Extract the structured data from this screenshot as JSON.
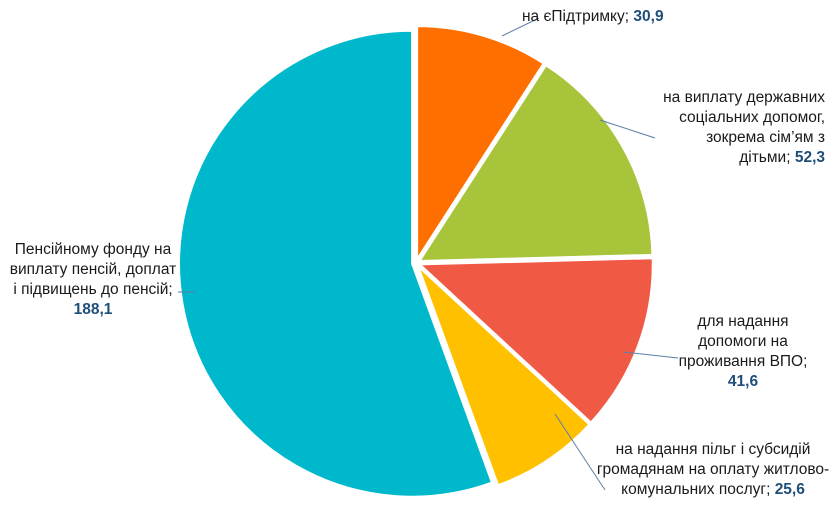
{
  "chart_data": {
    "type": "pie",
    "legend": "none",
    "slices": [
      {
        "label": "на єПідтримку;",
        "value": 30.9,
        "value_text": "30,9",
        "color": "#FF6F00"
      },
      {
        "label": "на виплату державних соціальних допомог, зокрема сім’ям з дітьми;",
        "value": 52.3,
        "value_text": "52,3",
        "color": "#A8C43A"
      },
      {
        "label": "для надання допомоги на проживання ВПО;",
        "value": 41.6,
        "value_text": "41,6",
        "color": "#F05A45"
      },
      {
        "label": "на надання пільг і субсидій громадянам на оплату житлово-комунальних послуг;",
        "value": 25.6,
        "value_text": "25,6",
        "color": "#FFC000"
      },
      {
        "label": "Пенсійному фонду на виплату пенсій, доплат і підвищень до пенсій;",
        "value": 188.1,
        "value_text": "188,1",
        "color": "#00B8CC"
      }
    ]
  }
}
